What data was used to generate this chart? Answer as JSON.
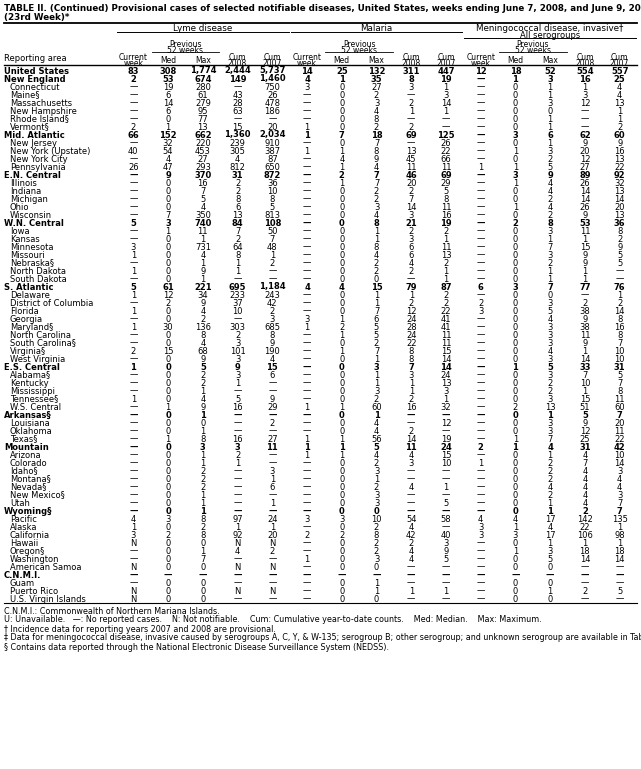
{
  "title_line1": "TABLE II. (Continued) Provisional cases of selected notifiable diseases, United States, weeks ending June 7, 2008, and June 9, 2007",
  "title_line2": "(23rd Week)*",
  "rows": [
    [
      "United States",
      "83",
      "308",
      "1,774",
      "2,444",
      "5,737",
      "14",
      "25",
      "132",
      "311",
      "447",
      "12",
      "18",
      "52",
      "554",
      "557"
    ],
    [
      "New England",
      "2",
      "53",
      "674",
      "149",
      "1,460",
      "4",
      "1",
      "35",
      "8",
      "19",
      "—",
      "1",
      "3",
      "16",
      "25"
    ],
    [
      "Connecticut",
      "—",
      "19",
      "280",
      "—",
      "750",
      "3",
      "0",
      "27",
      "3",
      "1",
      "—",
      "0",
      "1",
      "1",
      "4"
    ],
    [
      "Maine§",
      "—",
      "6",
      "61",
      "43",
      "26",
      "—",
      "0",
      "2",
      "—",
      "3",
      "—",
      "0",
      "1",
      "3",
      "4"
    ],
    [
      "Massachusetts",
      "—",
      "14",
      "279",
      "28",
      "478",
      "—",
      "0",
      "3",
      "2",
      "14",
      "—",
      "0",
      "3",
      "12",
      "13"
    ],
    [
      "New Hampshire",
      "—",
      "6",
      "95",
      "63",
      "186",
      "—",
      "0",
      "4",
      "1",
      "1",
      "—",
      "0",
      "0",
      "—",
      "1"
    ],
    [
      "Rhode Island§",
      "—",
      "0",
      "77",
      "—",
      "—",
      "—",
      "0",
      "8",
      "—",
      "—",
      "—",
      "0",
      "1",
      "—",
      "1"
    ],
    [
      "Vermont§",
      "2",
      "1",
      "13",
      "15",
      "20",
      "1",
      "0",
      "2",
      "2",
      "—",
      "—",
      "0",
      "1",
      "—",
      "2"
    ],
    [
      "Mid. Atlantic",
      "66",
      "152",
      "662",
      "1,360",
      "2,034",
      "1",
      "7",
      "18",
      "69",
      "125",
      "—",
      "3",
      "6",
      "62",
      "60"
    ],
    [
      "New Jersey",
      "—",
      "32",
      "220",
      "239",
      "910",
      "—",
      "0",
      "7",
      "—",
      "26",
      "—",
      "0",
      "1",
      "9",
      "9"
    ],
    [
      "New York (Upstate)",
      "40",
      "54",
      "453",
      "305",
      "387",
      "1",
      "1",
      "8",
      "13",
      "22",
      "—",
      "1",
      "3",
      "20",
      "16"
    ],
    [
      "New York City",
      "—",
      "4",
      "27",
      "4",
      "87",
      "—",
      "4",
      "9",
      "45",
      "66",
      "—",
      "0",
      "2",
      "12",
      "13"
    ],
    [
      "Pennsylvania",
      "26",
      "47",
      "293",
      "812",
      "650",
      "—",
      "1",
      "4",
      "11",
      "11",
      "1",
      "1",
      "5",
      "27",
      "22"
    ],
    [
      "E.N. Central",
      "—",
      "9",
      "370",
      "31",
      "872",
      "—",
      "2",
      "7",
      "46",
      "69",
      "—",
      "3",
      "9",
      "89",
      "92"
    ],
    [
      "Illinois",
      "—",
      "0",
      "16",
      "2",
      "36",
      "—",
      "1",
      "7",
      "20",
      "29",
      "—",
      "1",
      "4",
      "26",
      "32"
    ],
    [
      "Indiana",
      "—",
      "0",
      "7",
      "2",
      "10",
      "—",
      "0",
      "2",
      "2",
      "5",
      "—",
      "0",
      "4",
      "14",
      "13"
    ],
    [
      "Michigan",
      "—",
      "0",
      "5",
      "8",
      "8",
      "—",
      "0",
      "2",
      "7",
      "8",
      "—",
      "0",
      "2",
      "14",
      "14"
    ],
    [
      "Ohio",
      "—",
      "0",
      "4",
      "6",
      "5",
      "—",
      "0",
      "3",
      "14",
      "11",
      "—",
      "1",
      "4",
      "26",
      "20"
    ],
    [
      "Wisconsin",
      "—",
      "7",
      "350",
      "13",
      "813",
      "—",
      "0",
      "4",
      "3",
      "16",
      "—",
      "0",
      "2",
      "9",
      "13"
    ],
    [
      "W.N. Central",
      "5",
      "3",
      "740",
      "84",
      "108",
      "—",
      "0",
      "8",
      "21",
      "19",
      "—",
      "2",
      "8",
      "53",
      "36"
    ],
    [
      "Iowa",
      "—",
      "1",
      "11",
      "7",
      "50",
      "—",
      "0",
      "1",
      "2",
      "2",
      "—",
      "0",
      "3",
      "11",
      "8"
    ],
    [
      "Kansas",
      "—",
      "0",
      "1",
      "2",
      "7",
      "—",
      "0",
      "1",
      "3",
      "1",
      "—",
      "0",
      "1",
      "1",
      "2"
    ],
    [
      "Minnesota",
      "3",
      "0",
      "731",
      "64",
      "48",
      "—",
      "0",
      "8",
      "6",
      "11",
      "—",
      "0",
      "7",
      "15",
      "9"
    ],
    [
      "Missouri",
      "1",
      "0",
      "4",
      "8",
      "1",
      "—",
      "0",
      "4",
      "6",
      "13",
      "—",
      "0",
      "3",
      "9",
      "5"
    ],
    [
      "Nebraska§",
      "—",
      "0",
      "1",
      "1",
      "2",
      "—",
      "0",
      "2",
      "4",
      "2",
      "—",
      "0",
      "2",
      "9",
      "5"
    ],
    [
      "North Dakota",
      "1",
      "0",
      "9",
      "1",
      "—",
      "—",
      "0",
      "2",
      "2",
      "1",
      "—",
      "0",
      "1",
      "1",
      "—"
    ],
    [
      "South Dakota",
      "—",
      "0",
      "1",
      "—",
      "—",
      "—",
      "0",
      "0",
      "—",
      "1",
      "—",
      "0",
      "1",
      "1",
      "—"
    ],
    [
      "S. Atlantic",
      "5",
      "61",
      "221",
      "695",
      "1,184",
      "4",
      "4",
      "15",
      "79",
      "87",
      "6",
      "3",
      "7",
      "77",
      "76"
    ],
    [
      "Delaware",
      "1",
      "12",
      "34",
      "233",
      "243",
      "—",
      "0",
      "1",
      "1",
      "2",
      "—",
      "0",
      "0",
      "—",
      "1"
    ],
    [
      "District of Columbia",
      "—",
      "2",
      "9",
      "37",
      "42",
      "—",
      "0",
      "1",
      "2",
      "2",
      "2",
      "0",
      "3",
      "2",
      "2"
    ],
    [
      "Florida",
      "1",
      "0",
      "4",
      "10",
      "2",
      "—",
      "0",
      "7",
      "12",
      "22",
      "3",
      "0",
      "5",
      "38",
      "14"
    ],
    [
      "Georgia",
      "—",
      "0",
      "2",
      "—",
      "3",
      "3",
      "1",
      "6",
      "24",
      "41",
      "—",
      "0",
      "4",
      "9",
      "8"
    ],
    [
      "Maryland§",
      "1",
      "30",
      "136",
      "303",
      "685",
      "1",
      "2",
      "5",
      "28",
      "41",
      "—",
      "0",
      "3",
      "38",
      "16"
    ],
    [
      "North Carolina",
      "—",
      "0",
      "8",
      "2",
      "8",
      "—",
      "1",
      "5",
      "24",
      "11",
      "—",
      "0",
      "3",
      "11",
      "8"
    ],
    [
      "South Carolina§",
      "—",
      "0",
      "4",
      "3",
      "9",
      "—",
      "0",
      "2",
      "22",
      "11",
      "—",
      "0",
      "3",
      "9",
      "7"
    ],
    [
      "Virginia§",
      "2",
      "15",
      "68",
      "101",
      "190",
      "—",
      "1",
      "7",
      "8",
      "15",
      "—",
      "0",
      "4",
      "1",
      "10"
    ],
    [
      "West Virginia",
      "—",
      "0",
      "9",
      "3",
      "4",
      "—",
      "0",
      "1",
      "8",
      "14",
      "—",
      "0",
      "3",
      "14",
      "10"
    ],
    [
      "E.S. Central",
      "1",
      "0",
      "5",
      "9",
      "15",
      "—",
      "0",
      "3",
      "7",
      "14",
      "—",
      "1",
      "5",
      "33",
      "31"
    ],
    [
      "Alabama§",
      "—",
      "0",
      "2",
      "3",
      "6",
      "—",
      "0",
      "1",
      "3",
      "24",
      "—",
      "0",
      "3",
      "7",
      "5"
    ],
    [
      "Kentucky",
      "—",
      "0",
      "2",
      "1",
      "—",
      "—",
      "0",
      "1",
      "1",
      "13",
      "—",
      "0",
      "2",
      "10",
      "7"
    ],
    [
      "Mississippi",
      "—",
      "0",
      "1",
      "—",
      "—",
      "—",
      "0",
      "3",
      "1",
      "3",
      "—",
      "0",
      "2",
      "1",
      "8"
    ],
    [
      "Tennessee§",
      "1",
      "0",
      "4",
      "5",
      "9",
      "—",
      "0",
      "2",
      "2",
      "1",
      "—",
      "0",
      "3",
      "15",
      "11"
    ],
    [
      "W.S. Central",
      "—",
      "1",
      "9",
      "16",
      "29",
      "1",
      "1",
      "60",
      "16",
      "32",
      "—",
      "2",
      "13",
      "51",
      "60"
    ],
    [
      "Arkansas§",
      "—",
      "0",
      "1",
      "—",
      "—",
      "—",
      "0",
      "1",
      "—",
      "—",
      "—",
      "0",
      "1",
      "5",
      "7"
    ],
    [
      "Louisiana",
      "—",
      "0",
      "0",
      "—",
      "2",
      "—",
      "0",
      "4",
      "—",
      "12",
      "—",
      "0",
      "3",
      "9",
      "20"
    ],
    [
      "Oklahoma",
      "—",
      "0",
      "1",
      "—",
      "—",
      "—",
      "0",
      "4",
      "2",
      "—",
      "—",
      "0",
      "3",
      "12",
      "11"
    ],
    [
      "Texas§",
      "—",
      "1",
      "8",
      "16",
      "27",
      "1",
      "1",
      "56",
      "14",
      "19",
      "—",
      "1",
      "7",
      "25",
      "22"
    ],
    [
      "Mountain",
      "—",
      "0",
      "3",
      "3",
      "11",
      "1",
      "1",
      "5",
      "11",
      "24",
      "2",
      "1",
      "4",
      "31",
      "42"
    ],
    [
      "Arizona",
      "—",
      "0",
      "1",
      "2",
      "—",
      "1",
      "1",
      "4",
      "4",
      "15",
      "—",
      "0",
      "1",
      "4",
      "10"
    ],
    [
      "Colorado",
      "—",
      "0",
      "1",
      "1",
      "—",
      "—",
      "0",
      "2",
      "3",
      "10",
      "1",
      "0",
      "2",
      "7",
      "14"
    ],
    [
      "Idaho§",
      "—",
      "0",
      "2",
      "—",
      "3",
      "—",
      "0",
      "3",
      "—",
      "—",
      "—",
      "0",
      "2",
      "4",
      "3"
    ],
    [
      "Montana§",
      "—",
      "0",
      "2",
      "—",
      "1",
      "—",
      "0",
      "1",
      "—",
      "—",
      "—",
      "0",
      "2",
      "4",
      "4"
    ],
    [
      "Nevada§",
      "—",
      "0",
      "2",
      "—",
      "6",
      "—",
      "0",
      "2",
      "4",
      "1",
      "—",
      "0",
      "4",
      "4",
      "4"
    ],
    [
      "New Mexico§",
      "—",
      "0",
      "1",
      "—",
      "—",
      "—",
      "0",
      "3",
      "—",
      "—",
      "—",
      "0",
      "2",
      "4",
      "3"
    ],
    [
      "Utah",
      "—",
      "0",
      "1",
      "—",
      "1",
      "—",
      "0",
      "3",
      "—",
      "5",
      "—",
      "0",
      "1",
      "4",
      "7"
    ],
    [
      "Wyoming§",
      "—",
      "0",
      "1",
      "—",
      "—",
      "—",
      "0",
      "0",
      "—",
      "—",
      "—",
      "0",
      "1",
      "2",
      "7"
    ],
    [
      "Pacific",
      "4",
      "3",
      "8",
      "97",
      "24",
      "3",
      "3",
      "10",
      "54",
      "58",
      "4",
      "4",
      "17",
      "142",
      "135"
    ],
    [
      "Alaska",
      "1",
      "0",
      "2",
      "1",
      "1",
      "—",
      "0",
      "2",
      "4",
      "—",
      "3",
      "1",
      "4",
      "22",
      "1"
    ],
    [
      "California",
      "3",
      "2",
      "8",
      "92",
      "20",
      "2",
      "2",
      "8",
      "42",
      "40",
      "3",
      "3",
      "17",
      "106",
      "98"
    ],
    [
      "Hawaii",
      "N",
      "0",
      "0",
      "N",
      "N",
      "—",
      "0",
      "2",
      "2",
      "3",
      "—",
      "0",
      "1",
      "1",
      "1"
    ],
    [
      "Oregon§",
      "—",
      "0",
      "1",
      "4",
      "2",
      "—",
      "0",
      "2",
      "4",
      "9",
      "—",
      "1",
      "3",
      "18",
      "18"
    ],
    [
      "Washington",
      "—",
      "0",
      "7",
      "—",
      "—",
      "1",
      "0",
      "3",
      "4",
      "5",
      "—",
      "0",
      "5",
      "14",
      "14"
    ],
    [
      "American Samoa",
      "N",
      "0",
      "0",
      "N",
      "N",
      "—",
      "0",
      "0",
      "—",
      "—",
      "—",
      "0",
      "0",
      "—",
      "—"
    ],
    [
      "C.N.M.I.",
      "—",
      "—",
      "—",
      "—",
      "—",
      "—",
      "—",
      "—",
      "—",
      "—",
      "—",
      "—",
      "—",
      "—",
      "—"
    ],
    [
      "Guam",
      "—",
      "0",
      "0",
      "—",
      "—",
      "—",
      "0",
      "1",
      "—",
      "—",
      "—",
      "0",
      "0",
      "—",
      "—"
    ],
    [
      "Puerto Rico",
      "N",
      "0",
      "0",
      "N",
      "N",
      "—",
      "0",
      "1",
      "1",
      "1",
      "—",
      "0",
      "1",
      "2",
      "5"
    ],
    [
      "U.S. Virgin Islands",
      "N",
      "0",
      "0",
      "—",
      "—",
      "—",
      "0",
      "0",
      "—",
      "—",
      "—",
      "0",
      "0",
      "—",
      "—"
    ]
  ],
  "bold_rows": [
    0,
    1,
    8,
    13,
    19,
    27,
    37,
    43,
    47,
    55,
    63
  ],
  "footnotes": [
    "C.N.M.I.: Commonwealth of Northern Mariana Islands.",
    "U: Unavailable.   —: No reported cases.    N: Not notifiable.    Cum: Cumulative year-to-date counts.    Med: Median.    Max: Maximum.",
    "† Incidence data for reporting years 2007 and 2008 are provisional.",
    "‡ Data for meningococcal disease, invasive caused by serogroups A, C, Y, & W-135; serogroup B; other serogroup; and unknown serogroup are available in Table I.",
    "§ Contains data reported through the National Electronic Disease Surveillance System (NEDSS)."
  ]
}
